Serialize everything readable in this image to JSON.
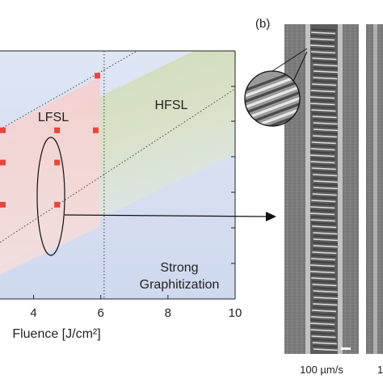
{
  "chart_data": {
    "type": "scatter",
    "xlabel": "Fluence [J/cm²]",
    "ylabel": "",
    "xlim": [
      3.0,
      10.0
    ],
    "x_ticks": [
      4,
      6,
      8,
      10
    ],
    "threshold_fluence": 6.1,
    "marker_color": "#e8453c",
    "points": [
      {
        "x": 5.9,
        "y": 0.9
      },
      {
        "x": 3.0,
        "y": 0.68
      },
      {
        "x": 4.7,
        "y": 0.68
      },
      {
        "x": 5.85,
        "y": 0.68
      },
      {
        "x": 3.0,
        "y": 0.55
      },
      {
        "x": 4.7,
        "y": 0.55
      },
      {
        "x": 3.0,
        "y": 0.38
      },
      {
        "x": 4.7,
        "y": 0.38
      }
    ],
    "regions": [
      {
        "label": "LFSL",
        "color": "#f3c6c6"
      },
      {
        "label": "HFSL",
        "color": "#cfdcb6"
      },
      {
        "label_lines": [
          "Strong",
          "Graphitization"
        ],
        "color": "#cfd9ee"
      }
    ]
  },
  "panel_b": {
    "label": "(b)",
    "speed_label": "100 µm/s",
    "second_speed_label_fragment": "1"
  }
}
